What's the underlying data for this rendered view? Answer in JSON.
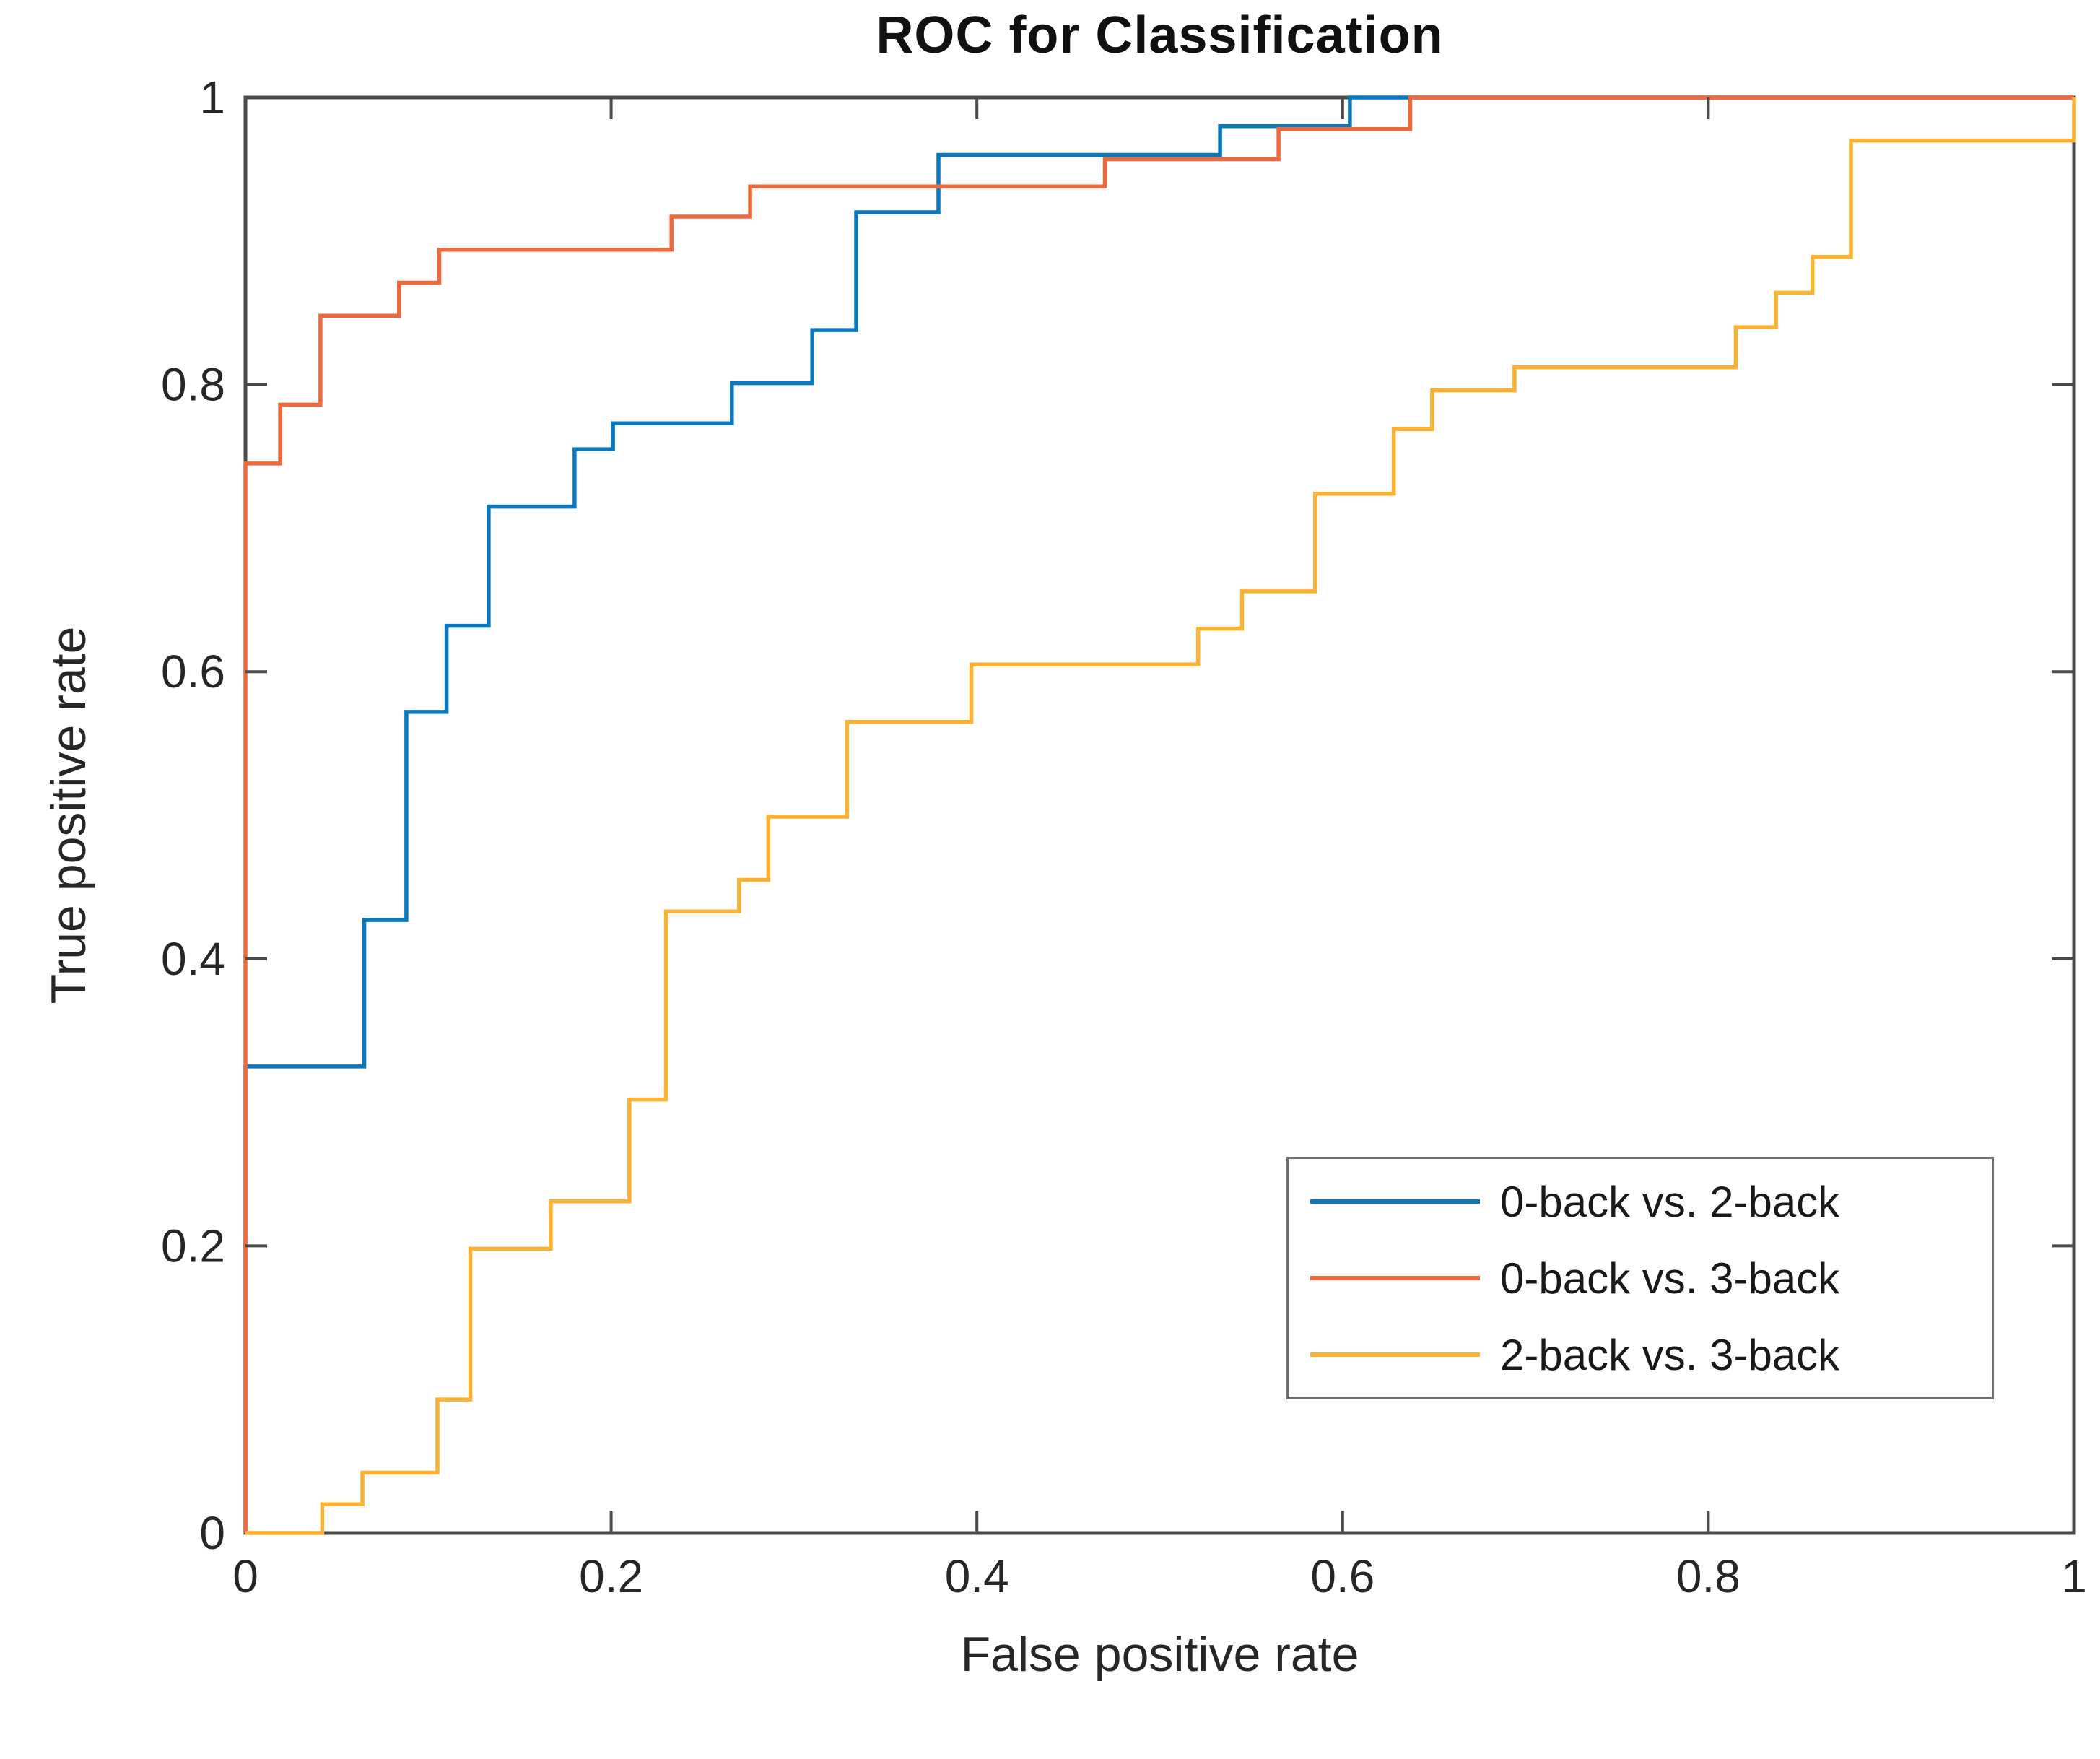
{
  "title": "ROC for Classification",
  "axis_color": "#4a4a4a",
  "text_color": "#262626",
  "chart_data": {
    "type": "line",
    "subtype": "step-roc-curves",
    "title": "ROC for Classification",
    "xlabel": "False positive rate",
    "ylabel": "True positive rate",
    "xlim": [
      0,
      1
    ],
    "ylim": [
      0,
      1
    ],
    "grid": false,
    "legend_position": "southeast",
    "x_ticks": [
      0,
      0.2,
      0.4,
      0.6,
      0.8,
      1
    ],
    "y_ticks": [
      0,
      0.2,
      0.4,
      0.6,
      0.8,
      1
    ],
    "x_tick_labels": [
      "0",
      "0.2",
      "0.4",
      "0.6",
      "0.8",
      "1"
    ],
    "y_tick_labels": [
      "0",
      "0.2",
      "0.4",
      "0.6",
      "0.8",
      "1"
    ],
    "series": [
      {
        "name": "0-back vs. 2-back",
        "color": "#0b78be",
        "points": [
          [
            0,
            0
          ],
          [
            0,
            0.325
          ],
          [
            0.065,
            0.325
          ],
          [
            0.065,
            0.427
          ],
          [
            0.088,
            0.427
          ],
          [
            0.088,
            0.572
          ],
          [
            0.11,
            0.572
          ],
          [
            0.11,
            0.632
          ],
          [
            0.133,
            0.632
          ],
          [
            0.133,
            0.715
          ],
          [
            0.18,
            0.715
          ],
          [
            0.18,
            0.755
          ],
          [
            0.201,
            0.755
          ],
          [
            0.201,
            0.773
          ],
          [
            0.266,
            0.773
          ],
          [
            0.266,
            0.801
          ],
          [
            0.31,
            0.801
          ],
          [
            0.31,
            0.838
          ],
          [
            0.334,
            0.838
          ],
          [
            0.334,
            0.92
          ],
          [
            0.379,
            0.92
          ],
          [
            0.379,
            0.96
          ],
          [
            0.533,
            0.96
          ],
          [
            0.533,
            0.98
          ],
          [
            0.604,
            0.98
          ],
          [
            0.604,
            1
          ],
          [
            1,
            1
          ]
        ]
      },
      {
        "name": "0-back vs. 3-back",
        "color": "#ee6a3c",
        "points": [
          [
            0,
            0
          ],
          [
            0,
            0.745
          ],
          [
            0.019,
            0.745
          ],
          [
            0.019,
            0.786
          ],
          [
            0.041,
            0.786
          ],
          [
            0.041,
            0.848
          ],
          [
            0.084,
            0.848
          ],
          [
            0.084,
            0.871
          ],
          [
            0.106,
            0.871
          ],
          [
            0.106,
            0.894
          ],
          [
            0.233,
            0.894
          ],
          [
            0.233,
            0.917
          ],
          [
            0.276,
            0.917
          ],
          [
            0.276,
            0.938
          ],
          [
            0.47,
            0.938
          ],
          [
            0.47,
            0.957
          ],
          [
            0.565,
            0.957
          ],
          [
            0.565,
            0.978
          ],
          [
            0.637,
            0.978
          ],
          [
            0.637,
            1
          ],
          [
            1,
            1
          ]
        ]
      },
      {
        "name": "2-back vs. 3-back",
        "color": "#f9b233",
        "points": [
          [
            0,
            0
          ],
          [
            0.042,
            0
          ],
          [
            0.042,
            0.02
          ],
          [
            0.064,
            0.02
          ],
          [
            0.064,
            0.042
          ],
          [
            0.105,
            0.042
          ],
          [
            0.105,
            0.093
          ],
          [
            0.123,
            0.093
          ],
          [
            0.123,
            0.198
          ],
          [
            0.167,
            0.198
          ],
          [
            0.167,
            0.231
          ],
          [
            0.21,
            0.231
          ],
          [
            0.21,
            0.302
          ],
          [
            0.23,
            0.302
          ],
          [
            0.23,
            0.433
          ],
          [
            0.27,
            0.433
          ],
          [
            0.27,
            0.455
          ],
          [
            0.286,
            0.455
          ],
          [
            0.286,
            0.499
          ],
          [
            0.329,
            0.499
          ],
          [
            0.329,
            0.565
          ],
          [
            0.397,
            0.565
          ],
          [
            0.397,
            0.605
          ],
          [
            0.521,
            0.605
          ],
          [
            0.521,
            0.63
          ],
          [
            0.545,
            0.63
          ],
          [
            0.545,
            0.656
          ],
          [
            0.585,
            0.656
          ],
          [
            0.585,
            0.724
          ],
          [
            0.628,
            0.724
          ],
          [
            0.628,
            0.769
          ],
          [
            0.649,
            0.769
          ],
          [
            0.649,
            0.796
          ],
          [
            0.694,
            0.796
          ],
          [
            0.694,
            0.812
          ],
          [
            0.815,
            0.812
          ],
          [
            0.815,
            0.84
          ],
          [
            0.837,
            0.84
          ],
          [
            0.837,
            0.864
          ],
          [
            0.857,
            0.864
          ],
          [
            0.857,
            0.889
          ],
          [
            0.878,
            0.889
          ],
          [
            0.878,
            0.97
          ],
          [
            1,
            0.97
          ],
          [
            1,
            1
          ]
        ]
      }
    ]
  },
  "legend": {
    "items": [
      {
        "label": "0-back vs. 2-back"
      },
      {
        "label": "0-back vs. 3-back"
      },
      {
        "label": "2-back vs. 3-back"
      }
    ]
  }
}
